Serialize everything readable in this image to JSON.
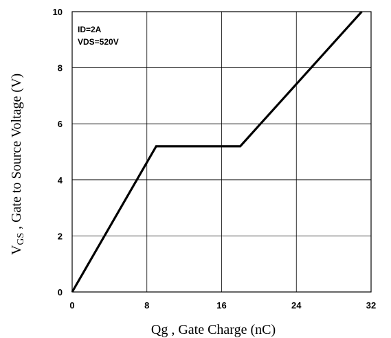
{
  "chart_data": {
    "type": "line",
    "title": "",
    "xlabel": "Qg , Gate Charge (nC)",
    "ylabel_main": "V",
    "ylabel_sub": "GS",
    "ylabel_rest": " , Gate to Source Voltage (V)",
    "xlim": [
      0,
      32
    ],
    "ylim": [
      0,
      10
    ],
    "xticks": [
      0,
      8,
      16,
      24,
      32
    ],
    "yticks": [
      0,
      2,
      4,
      6,
      8,
      10
    ],
    "grid": true,
    "annotations": [
      "ID=2A",
      "VDS=520V"
    ],
    "series": [
      {
        "x": [
          0,
          9,
          18,
          31
        ],
        "y": [
          0,
          5.2,
          5.2,
          10
        ]
      }
    ]
  }
}
